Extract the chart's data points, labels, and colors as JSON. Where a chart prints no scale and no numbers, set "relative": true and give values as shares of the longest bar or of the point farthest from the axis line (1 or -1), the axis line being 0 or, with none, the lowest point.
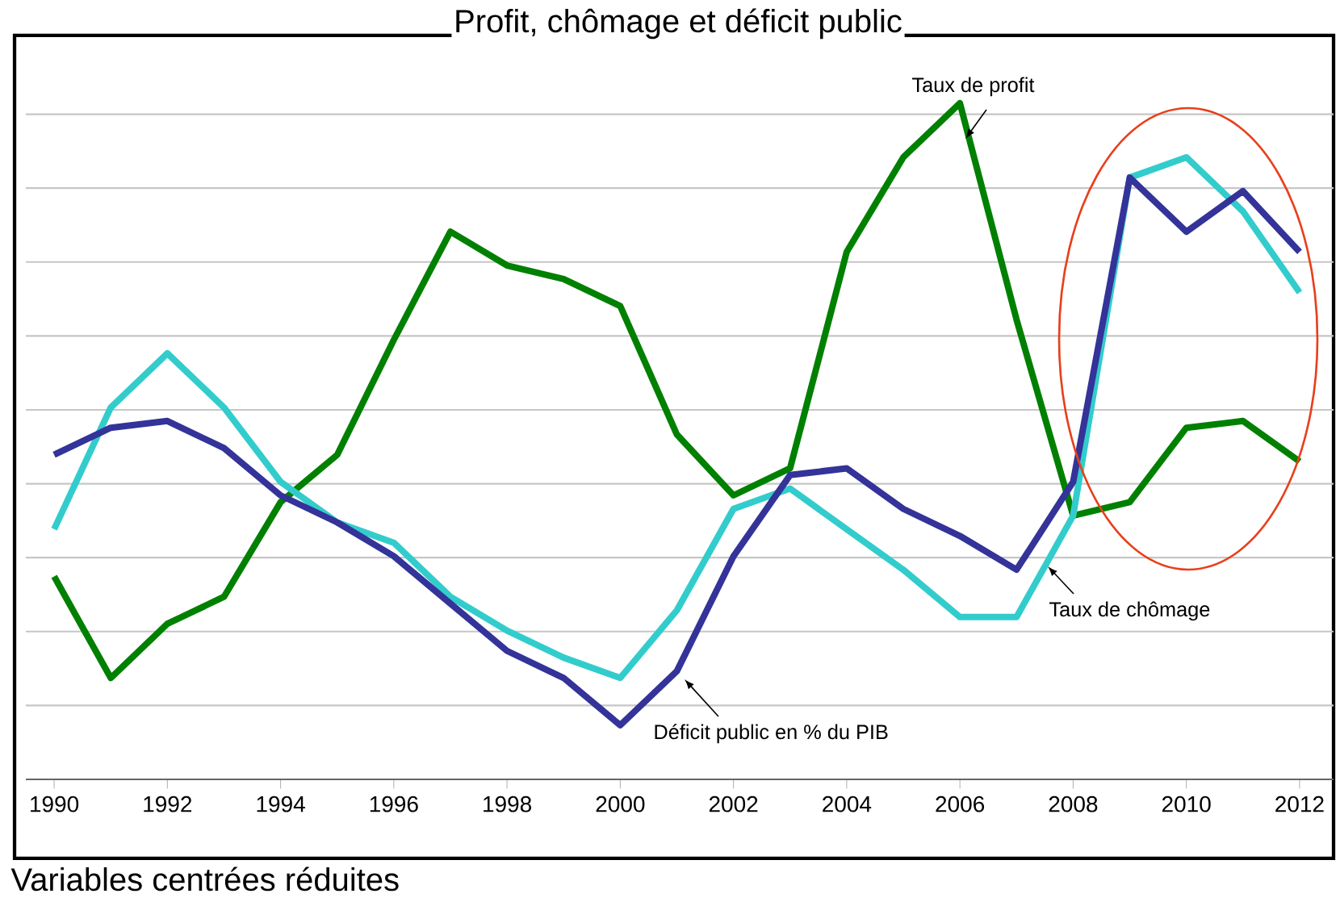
{
  "chart_data": {
    "type": "line",
    "title": "Profit, chômage et déficit public",
    "annotations": [
      "Variables centrées réduites"
    ],
    "relative": true,
    "grid": "y",
    "marker": "none",
    "line_style": "solid",
    "x": [
      1990,
      1991,
      1992,
      1993,
      1994,
      1995,
      1996,
      1997,
      1998,
      1999,
      2000,
      2001,
      2002,
      2003,
      2004,
      2005,
      2006,
      2007,
      2008,
      2009,
      2010,
      2011,
      2012
    ],
    "xlim": [
      1989.5,
      2012.6
    ],
    "xticks": [
      1990,
      1992,
      1994,
      1996,
      1998,
      2000,
      2002,
      2004,
      2006,
      2008,
      2010,
      2012
    ],
    "series": [
      {
        "name": "Taux de profit",
        "color": "#008000",
        "values": [
          0.3,
          0.15,
          0.23,
          0.27,
          0.41,
          0.48,
          0.65,
          0.81,
          0.76,
          0.74,
          0.7,
          0.51,
          0.42,
          0.46,
          0.78,
          0.92,
          1,
          0.68,
          0.39,
          0.41,
          0.52,
          0.53,
          0.47
        ]
      },
      {
        "name": "Taux de chômage",
        "color": "#33cccc",
        "values": [
          0.37,
          0.55,
          0.63,
          0.55,
          0.44,
          0.38,
          0.35,
          0.27,
          0.22,
          0.18,
          0.15,
          0.25,
          0.4,
          0.43,
          0.37,
          0.31,
          0.24,
          0.24,
          0.39,
          0.89,
          0.92,
          0.84,
          0.72
        ]
      },
      {
        "name": "Déficit public en % du PIB",
        "color": "#333399",
        "values": [
          0.48,
          0.52,
          0.53,
          0.49,
          0.42,
          0.38,
          0.33,
          0.26,
          0.19,
          0.15,
          0.08,
          0.16,
          0.33,
          0.45,
          0.46,
          0.4,
          0.36,
          0.31,
          0.44,
          0.89,
          0.81,
          0.87,
          0.78
        ]
      }
    ]
  }
}
